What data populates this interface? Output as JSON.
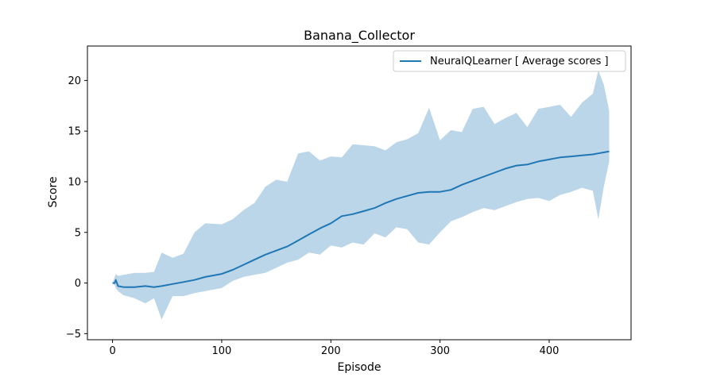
{
  "chart_data": {
    "type": "line",
    "title": "Banana_Collector",
    "xlabel": "Episode",
    "ylabel": "Score",
    "xlim": [
      -23,
      475
    ],
    "ylim": [
      -5.6,
      23.4
    ],
    "xticks": [
      0,
      100,
      200,
      300,
      400
    ],
    "yticks": [
      -5,
      0,
      5,
      10,
      15,
      20
    ],
    "grid": false,
    "legend_position": "top-right",
    "series": [
      {
        "name": "NeuralQLearner [ Average scores ]",
        "color": "#1f77b4",
        "band_color": "#a6c8e2",
        "x": [
          0,
          2,
          3,
          5,
          10,
          20,
          30,
          38,
          45,
          55,
          65,
          75,
          85,
          100,
          110,
          120,
          130,
          140,
          150,
          160,
          170,
          180,
          190,
          200,
          210,
          220,
          230,
          240,
          250,
          260,
          270,
          280,
          290,
          300,
          310,
          320,
          330,
          340,
          350,
          360,
          370,
          380,
          390,
          400,
          410,
          420,
          430,
          440,
          445,
          450,
          455
        ],
        "mean": [
          0,
          0,
          0.3,
          -0.3,
          -0.4,
          -0.4,
          -0.3,
          -0.4,
          -0.3,
          -0.1,
          0.1,
          0.3,
          0.6,
          0.9,
          1.3,
          1.8,
          2.3,
          2.8,
          3.2,
          3.6,
          4.2,
          4.8,
          5.4,
          5.9,
          6.6,
          6.8,
          7.1,
          7.4,
          7.9,
          8.3,
          8.6,
          8.9,
          9.0,
          9.0,
          9.2,
          9.7,
          10.1,
          10.5,
          10.9,
          11.3,
          11.6,
          11.7,
          12.0,
          12.2,
          12.4,
          12.5,
          12.6,
          12.7,
          12.8,
          12.9,
          13.0
        ],
        "upper": [
          0,
          0.6,
          0.9,
          0.7,
          0.8,
          1.0,
          1.0,
          1.1,
          3.0,
          2.5,
          2.9,
          5.0,
          5.9,
          5.8,
          6.3,
          7.2,
          7.9,
          9.5,
          10.2,
          10.0,
          12.8,
          13.0,
          12.1,
          12.5,
          12.4,
          13.7,
          13.6,
          13.5,
          13.1,
          13.9,
          14.2,
          14.8,
          17.3,
          14.1,
          15.1,
          14.9,
          17.2,
          17.4,
          15.7,
          16.3,
          16.8,
          15.4,
          17.2,
          17.4,
          17.6,
          16.4,
          17.8,
          18.7,
          21.0,
          19.6,
          17.0
        ],
        "lower": [
          0,
          -0.2,
          -0.5,
          -0.8,
          -1.2,
          -1.5,
          -2.0,
          -1.5,
          -3.6,
          -1.3,
          -1.3,
          -1.0,
          -0.8,
          -0.5,
          0.2,
          0.6,
          0.8,
          1.0,
          1.5,
          2.0,
          2.3,
          3.0,
          2.8,
          3.7,
          3.5,
          4.0,
          3.8,
          4.9,
          4.5,
          5.5,
          5.3,
          4.0,
          3.8,
          5.0,
          6.1,
          6.5,
          7.0,
          7.4,
          7.2,
          7.6,
          8.0,
          8.3,
          8.4,
          8.1,
          8.7,
          9.0,
          9.4,
          9.1,
          6.3,
          9.5,
          12.0
        ]
      }
    ]
  }
}
